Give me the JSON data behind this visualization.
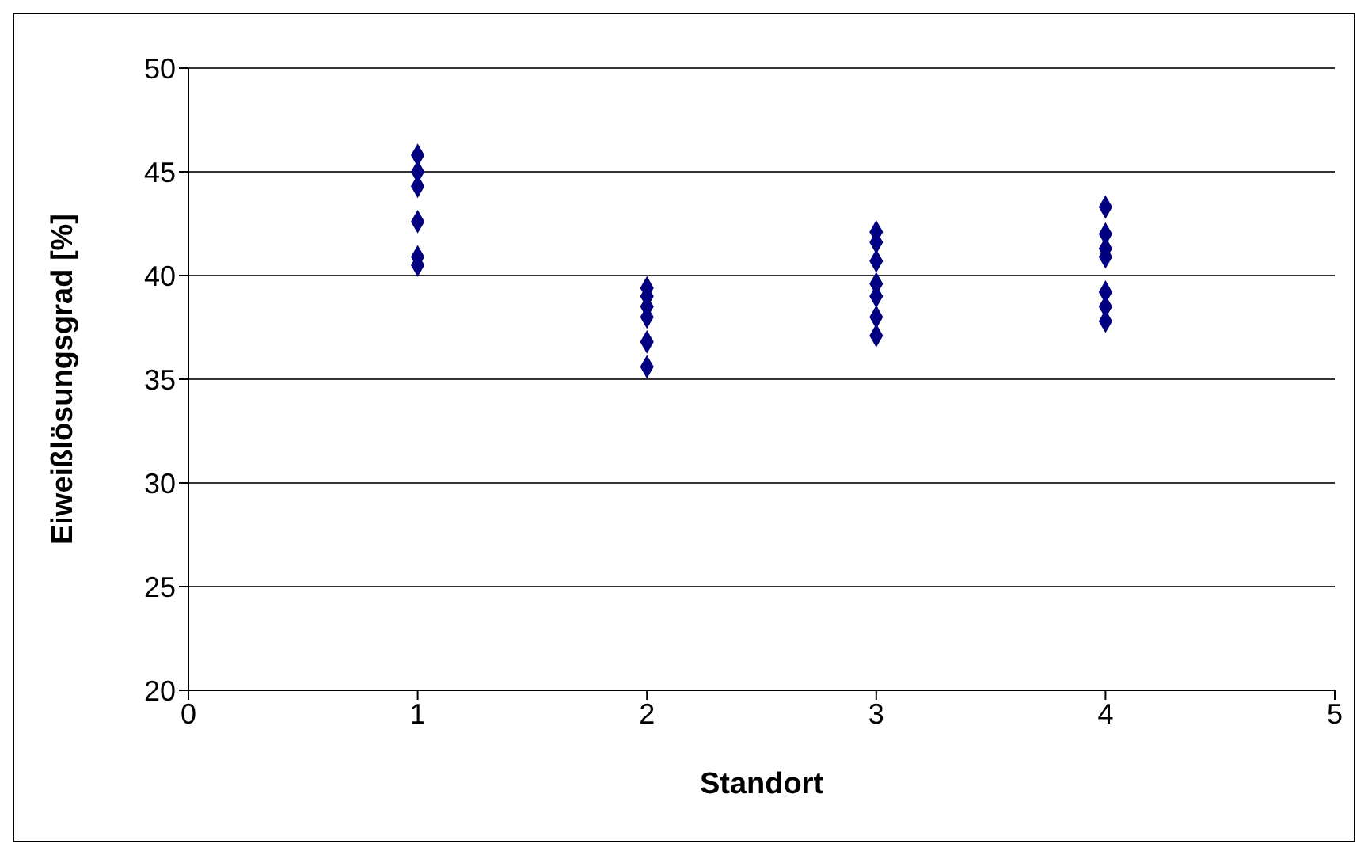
{
  "chart_data": {
    "type": "scatter",
    "xlabel": "Standort",
    "ylabel": "Eiweißlösungsgrad [%]",
    "x": [
      1,
      1,
      1,
      1,
      1,
      1,
      2,
      2,
      2,
      2,
      2,
      2,
      3,
      3,
      3,
      3,
      3,
      3,
      3,
      4,
      4,
      4,
      4,
      4,
      4,
      4
    ],
    "values": [
      45.8,
      45.0,
      44.3,
      42.6,
      40.9,
      40.5,
      39.4,
      39.0,
      38.5,
      38.0,
      36.8,
      35.6,
      42.1,
      41.6,
      40.7,
      39.6,
      39.0,
      38.0,
      37.1,
      43.3,
      42.0,
      41.3,
      40.9,
      39.2,
      38.5,
      37.8
    ],
    "color": "#000080",
    "marker": "diamond",
    "xlim": [
      0,
      5
    ],
    "xticks": [
      0,
      1,
      2,
      3,
      4,
      5
    ],
    "ylim": [
      20,
      50
    ],
    "yticks": [
      20,
      25,
      30,
      35,
      40,
      45,
      50
    ],
    "grid": "y",
    "legend": false
  }
}
